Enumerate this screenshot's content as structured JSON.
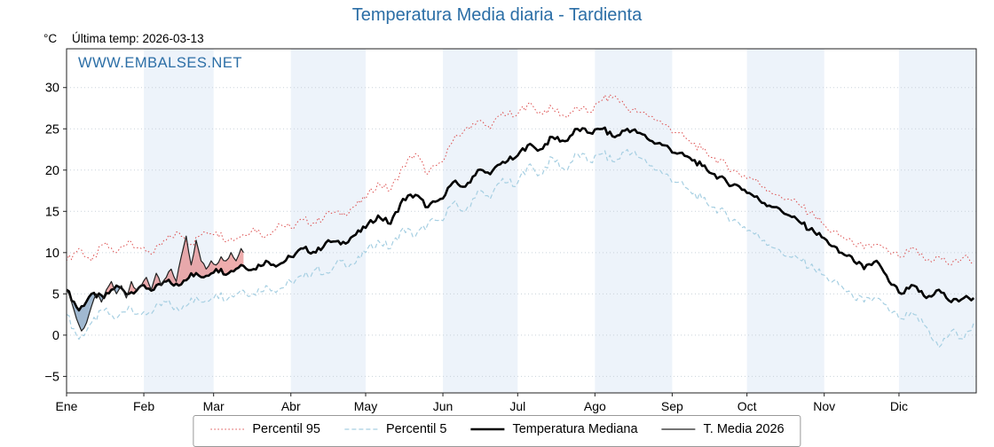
{
  "title": "Temperatura Media diaria - Tardienta",
  "header": {
    "y_unit": "°C",
    "last_temp": "Última temp: 2026-03-13"
  },
  "watermark": "WWW.EMBALSES.NET",
  "colors": {
    "accent_blue": "#2b6ea6",
    "axis": "#222222",
    "grid": "#c9d2da"
  },
  "chart_data": {
    "type": "line",
    "title": "Temperatura Media diaria - Tardienta",
    "xlabel": "",
    "ylabel": "°C",
    "x_unit": "day_of_year",
    "xlim": [
      0,
      365
    ],
    "ylim": [
      -7,
      34.7
    ],
    "yticks": [
      -5,
      0,
      5,
      10,
      15,
      20,
      25,
      30
    ],
    "plot_bg": "#ffffff",
    "band_color": "#edf3fa",
    "grid": true,
    "legend_position": "bottom",
    "months": [
      {
        "label": "Ene",
        "start_day": 0
      },
      {
        "label": "Feb",
        "start_day": 31
      },
      {
        "label": "Mar",
        "start_day": 59
      },
      {
        "label": "Abr",
        "start_day": 90
      },
      {
        "label": "May",
        "start_day": 120
      },
      {
        "label": "Jun",
        "start_day": 151
      },
      {
        "label": "Jul",
        "start_day": 181
      },
      {
        "label": "Ago",
        "start_day": 212
      },
      {
        "label": "Sep",
        "start_day": 243
      },
      {
        "label": "Oct",
        "start_day": 273
      },
      {
        "label": "Nov",
        "start_day": 304
      },
      {
        "label": "Dic",
        "start_day": 334
      }
    ],
    "series": [
      {
        "name": "Percentil 95",
        "color": "#dc4c4c",
        "dash": "1.5 2.5",
        "width": 1,
        "points": [
          [
            0,
            9
          ],
          [
            5,
            10.5
          ],
          [
            10,
            9
          ],
          [
            15,
            11
          ],
          [
            20,
            10
          ],
          [
            25,
            11.5
          ],
          [
            30,
            10.5
          ],
          [
            35,
            10
          ],
          [
            40,
            11.5
          ],
          [
            45,
            12.5
          ],
          [
            50,
            11
          ],
          [
            55,
            12.5
          ],
          [
            60,
            12.5
          ],
          [
            65,
            11.5
          ],
          [
            70,
            12
          ],
          [
            75,
            13
          ],
          [
            80,
            12
          ],
          [
            85,
            13.5
          ],
          [
            90,
            13
          ],
          [
            95,
            14
          ],
          [
            100,
            13.5
          ],
          [
            105,
            15
          ],
          [
            110,
            14.5
          ],
          [
            115,
            15.5
          ],
          [
            120,
            16.5
          ],
          [
            125,
            18.5
          ],
          [
            130,
            17.5
          ],
          [
            135,
            20.5
          ],
          [
            140,
            22
          ],
          [
            145,
            19.5
          ],
          [
            150,
            21
          ],
          [
            155,
            23.5
          ],
          [
            160,
            25
          ],
          [
            165,
            26
          ],
          [
            170,
            25
          ],
          [
            175,
            27
          ],
          [
            180,
            26.5
          ],
          [
            185,
            28
          ],
          [
            190,
            27
          ],
          [
            195,
            27.5
          ],
          [
            200,
            26.5
          ],
          [
            205,
            27.5
          ],
          [
            210,
            27
          ],
          [
            215,
            28.5
          ],
          [
            220,
            29
          ],
          [
            225,
            27.5
          ],
          [
            230,
            27
          ],
          [
            235,
            26.5
          ],
          [
            240,
            25.5
          ],
          [
            245,
            24.5
          ],
          [
            250,
            23.5
          ],
          [
            255,
            22.5
          ],
          [
            260,
            21.5
          ],
          [
            265,
            20.5
          ],
          [
            270,
            19.5
          ],
          [
            275,
            19
          ],
          [
            280,
            18
          ],
          [
            285,
            17
          ],
          [
            290,
            16.5
          ],
          [
            295,
            15.5
          ],
          [
            300,
            14.5
          ],
          [
            305,
            13
          ],
          [
            310,
            12
          ],
          [
            315,
            11.5
          ],
          [
            320,
            10.5
          ],
          [
            325,
            11
          ],
          [
            330,
            10
          ],
          [
            335,
            9.5
          ],
          [
            340,
            10.5
          ],
          [
            345,
            9
          ],
          [
            350,
            9.5
          ],
          [
            355,
            8.5
          ],
          [
            360,
            9.5
          ],
          [
            364,
            9
          ]
        ]
      },
      {
        "name": "Percentil 5",
        "color": "#a6cfe2",
        "dash": "5 3",
        "width": 1.2,
        "points": [
          [
            0,
            2.5
          ],
          [
            5,
            -0.5
          ],
          [
            10,
            1.5
          ],
          [
            15,
            3
          ],
          [
            20,
            2
          ],
          [
            25,
            3.5
          ],
          [
            30,
            2.5
          ],
          [
            35,
            3
          ],
          [
            40,
            4
          ],
          [
            45,
            3
          ],
          [
            50,
            4.5
          ],
          [
            55,
            4
          ],
          [
            60,
            5
          ],
          [
            65,
            4.5
          ],
          [
            70,
            5.5
          ],
          [
            75,
            5
          ],
          [
            80,
            6
          ],
          [
            85,
            5.5
          ],
          [
            90,
            6.5
          ],
          [
            95,
            7
          ],
          [
            100,
            8
          ],
          [
            105,
            7.5
          ],
          [
            110,
            9
          ],
          [
            115,
            8.5
          ],
          [
            120,
            10
          ],
          [
            125,
            11.5
          ],
          [
            130,
            10.5
          ],
          [
            135,
            13
          ],
          [
            140,
            12
          ],
          [
            145,
            13.5
          ],
          [
            150,
            14
          ],
          [
            155,
            16
          ],
          [
            160,
            15
          ],
          [
            165,
            17.5
          ],
          [
            170,
            16.5
          ],
          [
            175,
            19
          ],
          [
            180,
            18
          ],
          [
            185,
            20.5
          ],
          [
            190,
            19.5
          ],
          [
            195,
            21.5
          ],
          [
            200,
            20
          ],
          [
            205,
            22
          ],
          [
            210,
            21
          ],
          [
            215,
            22
          ],
          [
            220,
            21
          ],
          [
            225,
            22.5
          ],
          [
            230,
            21.5
          ],
          [
            235,
            20.5
          ],
          [
            240,
            19.5
          ],
          [
            245,
            18.5
          ],
          [
            250,
            17.5
          ],
          [
            255,
            16.5
          ],
          [
            260,
            15.5
          ],
          [
            265,
            14.5
          ],
          [
            270,
            13.5
          ],
          [
            275,
            12.5
          ],
          [
            280,
            11.5
          ],
          [
            285,
            10.5
          ],
          [
            290,
            9.5
          ],
          [
            295,
            9
          ],
          [
            300,
            8
          ],
          [
            305,
            7
          ],
          [
            310,
            6
          ],
          [
            315,
            5
          ],
          [
            320,
            4
          ],
          [
            325,
            4.5
          ],
          [
            330,
            3
          ],
          [
            335,
            2
          ],
          [
            340,
            2.5
          ],
          [
            345,
            1
          ],
          [
            350,
            -1.5
          ],
          [
            355,
            0.5
          ],
          [
            360,
            -0.5
          ],
          [
            364,
            1.5
          ]
        ]
      },
      {
        "name": "Temperatura Mediana",
        "color": "#000000",
        "dash": "",
        "width": 2.6,
        "points": [
          [
            0,
            5.5
          ],
          [
            5,
            3
          ],
          [
            10,
            5
          ],
          [
            15,
            4.5
          ],
          [
            20,
            6
          ],
          [
            25,
            5
          ],
          [
            30,
            6
          ],
          [
            35,
            5.5
          ],
          [
            40,
            6.5
          ],
          [
            45,
            6
          ],
          [
            50,
            7.5
          ],
          [
            55,
            7
          ],
          [
            60,
            8
          ],
          [
            65,
            7.5
          ],
          [
            70,
            8.5
          ],
          [
            75,
            8
          ],
          [
            80,
            9
          ],
          [
            85,
            8.5
          ],
          [
            90,
            9.5
          ],
          [
            95,
            10.5
          ],
          [
            100,
            10
          ],
          [
            105,
            11.5
          ],
          [
            110,
            11
          ],
          [
            115,
            12
          ],
          [
            120,
            13
          ],
          [
            125,
            14.5
          ],
          [
            130,
            13.5
          ],
          [
            135,
            16.5
          ],
          [
            140,
            17
          ],
          [
            145,
            15.5
          ],
          [
            150,
            16.5
          ],
          [
            155,
            18.5
          ],
          [
            160,
            18
          ],
          [
            165,
            20
          ],
          [
            170,
            19.5
          ],
          [
            175,
            21
          ],
          [
            180,
            21.5
          ],
          [
            185,
            23
          ],
          [
            190,
            22.5
          ],
          [
            195,
            24
          ],
          [
            200,
            23.5
          ],
          [
            205,
            25
          ],
          [
            210,
            24.5
          ],
          [
            215,
            25
          ],
          [
            220,
            24
          ],
          [
            225,
            25
          ],
          [
            230,
            24.5
          ],
          [
            235,
            23.5
          ],
          [
            240,
            23
          ],
          [
            245,
            22
          ],
          [
            250,
            21.5
          ],
          [
            255,
            20.5
          ],
          [
            260,
            19.5
          ],
          [
            265,
            18.5
          ],
          [
            270,
            18
          ],
          [
            275,
            17
          ],
          [
            280,
            16
          ],
          [
            285,
            15.5
          ],
          [
            290,
            14.5
          ],
          [
            295,
            13.5
          ],
          [
            300,
            12.5
          ],
          [
            305,
            11.5
          ],
          [
            310,
            10
          ],
          [
            315,
            9.5
          ],
          [
            320,
            8
          ],
          [
            325,
            9
          ],
          [
            330,
            6.5
          ],
          [
            335,
            5
          ],
          [
            340,
            6
          ],
          [
            345,
            4.5
          ],
          [
            350,
            5.5
          ],
          [
            355,
            4
          ],
          [
            360,
            4.5
          ],
          [
            364,
            4.5
          ]
        ]
      },
      {
        "name": "T. Media 2026",
        "color": "#222222",
        "dash": "",
        "width": 1.2,
        "points": [
          [
            0,
            5.5
          ],
          [
            2,
            4
          ],
          [
            4,
            2
          ],
          [
            6,
            0.5
          ],
          [
            8,
            1.5
          ],
          [
            10,
            3.5
          ],
          [
            12,
            5
          ],
          [
            14,
            4
          ],
          [
            16,
            5.5
          ],
          [
            18,
            6.5
          ],
          [
            20,
            5
          ],
          [
            22,
            6
          ],
          [
            24,
            4.5
          ],
          [
            26,
            6.5
          ],
          [
            28,
            5.5
          ],
          [
            30,
            6
          ],
          [
            32,
            7
          ],
          [
            34,
            5.5
          ],
          [
            36,
            7.5
          ],
          [
            38,
            6
          ],
          [
            40,
            7
          ],
          [
            42,
            8
          ],
          [
            44,
            6.5
          ],
          [
            46,
            9.5
          ],
          [
            48,
            12
          ],
          [
            50,
            8.5
          ],
          [
            52,
            11.5
          ],
          [
            54,
            9
          ],
          [
            56,
            8
          ],
          [
            58,
            9
          ],
          [
            60,
            8.5
          ],
          [
            62,
            9.5
          ],
          [
            64,
            9
          ],
          [
            66,
            10
          ],
          [
            68,
            9
          ],
          [
            70,
            10.5
          ],
          [
            71,
            10
          ]
        ]
      }
    ],
    "fills": {
      "between": [
        "T. Media 2026",
        "Temperatura Mediana"
      ],
      "above_color": "rgba(225,105,105,0.55)",
      "below_color": "rgba(96,136,176,0.60)"
    }
  }
}
